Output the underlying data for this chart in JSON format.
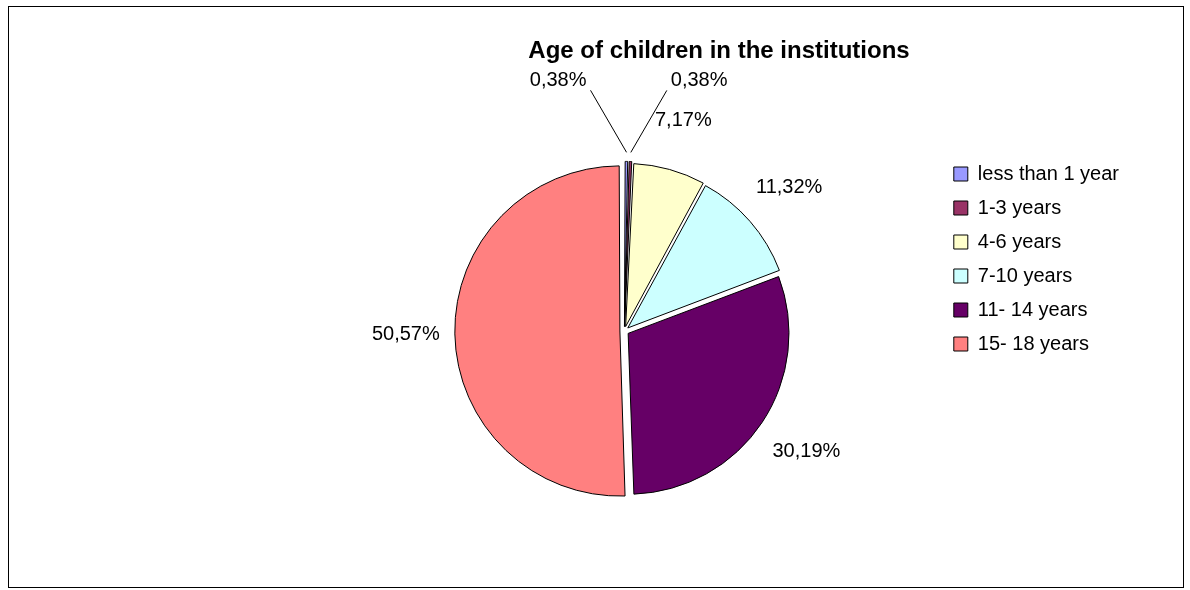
{
  "chart_data": {
    "type": "pie",
    "title": "Age of children in the institutions",
    "categories": [
      "less than 1 year",
      "1-3 years",
      "4-6 years",
      "7-10 years",
      "11- 14 years",
      "15- 18 years"
    ],
    "values": [
      0.38,
      0.38,
      7.17,
      11.32,
      30.19,
      50.57
    ],
    "value_labels": [
      "0,38%",
      "0,38%",
      "7,17%",
      "11,32%",
      "30,19%",
      "50,57%"
    ],
    "colors": [
      "#9999ff",
      "#993366",
      "#ffffcc",
      "#ccffff",
      "#660066",
      "#ff8080"
    ],
    "legend": "right"
  }
}
